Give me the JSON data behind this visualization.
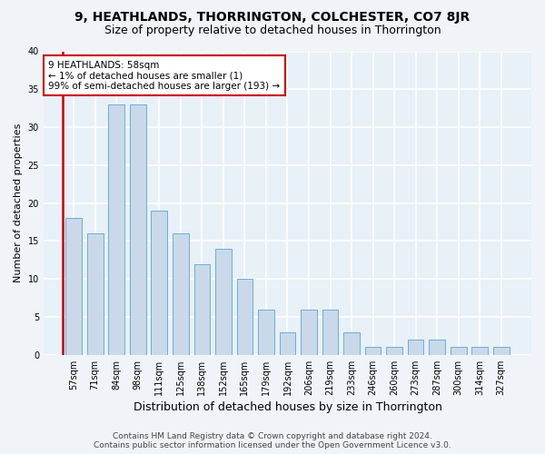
{
  "title": "9, HEATHLANDS, THORRINGTON, COLCHESTER, CO7 8JR",
  "subtitle": "Size of property relative to detached houses in Thorrington",
  "xlabel": "Distribution of detached houses by size in Thorrington",
  "ylabel": "Number of detached properties",
  "categories": [
    "57sqm",
    "71sqm",
    "84sqm",
    "98sqm",
    "111sqm",
    "125sqm",
    "138sqm",
    "152sqm",
    "165sqm",
    "179sqm",
    "192sqm",
    "206sqm",
    "219sqm",
    "233sqm",
    "246sqm",
    "260sqm",
    "273sqm",
    "287sqm",
    "300sqm",
    "314sqm",
    "327sqm"
  ],
  "values": [
    18,
    16,
    33,
    33,
    19,
    16,
    12,
    14,
    10,
    6,
    3,
    6,
    6,
    3,
    1,
    1,
    2,
    2,
    1,
    1,
    1
  ],
  "bar_color": "#c9d9ea",
  "bar_edgecolor": "#6aaed6",
  "annotation_line1": "9 HEATHLANDS: 58sqm",
  "annotation_line2": "← 1% of detached houses are smaller (1)",
  "annotation_line3": "99% of semi-detached houses are larger (193) →",
  "annotation_box_color": "#ffffff",
  "annotation_box_edgecolor": "#cc0000",
  "ylim": [
    0,
    40
  ],
  "yticks": [
    0,
    5,
    10,
    15,
    20,
    25,
    30,
    35,
    40
  ],
  "footer_line1": "Contains HM Land Registry data © Crown copyright and database right 2024.",
  "footer_line2": "Contains public sector information licensed under the Open Government Licence v3.0.",
  "bg_color": "#f0f4f8",
  "plot_bg_color": "#e8f0f8",
  "grid_color": "#ffffff",
  "title_fontsize": 10,
  "subtitle_fontsize": 9,
  "xlabel_fontsize": 9,
  "ylabel_fontsize": 8,
  "tick_fontsize": 7,
  "annotation_fontsize": 7.5,
  "footer_fontsize": 6.5,
  "red_line_color": "#cc0000"
}
